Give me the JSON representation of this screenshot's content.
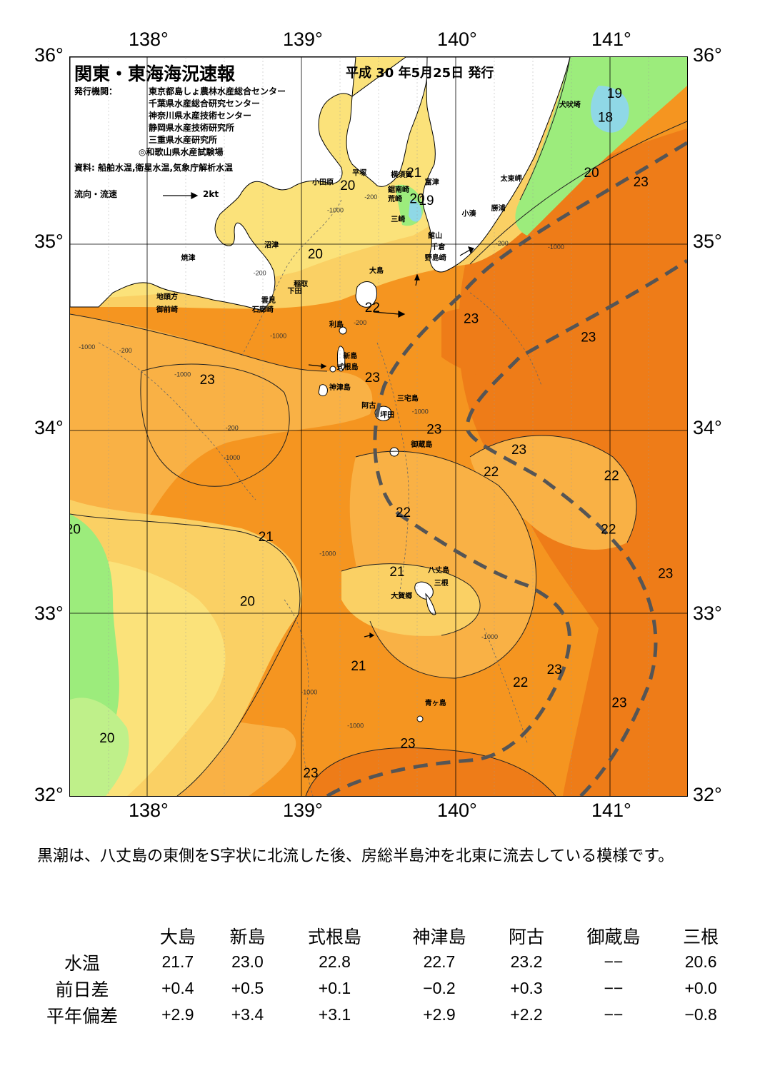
{
  "map": {
    "title": "関東・東海海況速報",
    "date": "平成 30 年5月25日 発行",
    "issuers_label": "発行機関：",
    "issuers": [
      "東京都島しょ農林水産総合センター",
      "千葉県水産総合研究センター",
      "神奈川県水産技術センター",
      "静岡県水産技術研究所",
      "三重県水産研究所",
      "◎和歌山県水産試験場"
    ],
    "sources": "資料: 船舶水温,衛星水温,気象庁解析水温",
    "legend_label": "流向・流速",
    "legend_speed": "2kt",
    "lon_labels": [
      "138°",
      "139°",
      "140°",
      "141°"
    ],
    "lat_labels": [
      "36°",
      "35°",
      "34°",
      "33°",
      "32°"
    ],
    "extent": {
      "lon": [
        137.5,
        141.5
      ],
      "lat": [
        32,
        36
      ]
    },
    "colors": {
      "t19": "#8fd8e6",
      "t20": "#9cec7c",
      "t20b": "#bff08a",
      "t21": "#fbe27a",
      "t21b": "#fad064",
      "t22": "#f9b145",
      "t23": "#f59520",
      "t23b": "#ee7c18",
      "land": "#ffffff",
      "kuroshio": "#555555"
    },
    "isotherm_labels": [
      {
        "text": "19",
        "lon": 141.03,
        "lat": 35.8
      },
      {
        "text": "18",
        "lon": 140.97,
        "lat": 35.67
      },
      {
        "text": "20",
        "lon": 140.88,
        "lat": 35.37
      },
      {
        "text": "23",
        "lon": 141.2,
        "lat": 35.32
      },
      {
        "text": "21",
        "lon": 139.73,
        "lat": 35.37
      },
      {
        "text": "20",
        "lon": 139.3,
        "lat": 35.3
      },
      {
        "text": "20",
        "lon": 139.75,
        "lat": 35.23
      },
      {
        "text": "19",
        "lon": 139.81,
        "lat": 35.22
      },
      {
        "text": "20",
        "lon": 139.09,
        "lat": 34.93
      },
      {
        "text": "22",
        "lon": 139.46,
        "lat": 34.64
      },
      {
        "text": "23",
        "lon": 140.1,
        "lat": 34.58
      },
      {
        "text": "23",
        "lon": 140.86,
        "lat": 34.48
      },
      {
        "text": "23",
        "lon": 138.39,
        "lat": 34.25
      },
      {
        "text": "23",
        "lon": 139.46,
        "lat": 34.26
      },
      {
        "text": "23",
        "lon": 139.86,
        "lat": 33.98
      },
      {
        "text": "23",
        "lon": 140.41,
        "lat": 33.87
      },
      {
        "text": "22",
        "lon": 140.23,
        "lat": 33.75
      },
      {
        "text": "22",
        "lon": 141.01,
        "lat": 33.73
      },
      {
        "text": "22",
        "lon": 139.66,
        "lat": 33.53
      },
      {
        "text": "22",
        "lon": 140.99,
        "lat": 33.44
      },
      {
        "text": "21",
        "lon": 138.77,
        "lat": 33.4
      },
      {
        "text": "21",
        "lon": 139.62,
        "lat": 33.21
      },
      {
        "text": "23",
        "lon": 141.36,
        "lat": 33.2
      },
      {
        "text": "20",
        "lon": 137.52,
        "lat": 33.44
      },
      {
        "text": "20",
        "lon": 138.65,
        "lat": 33.05
      },
      {
        "text": "21",
        "lon": 139.37,
        "lat": 32.7
      },
      {
        "text": "23",
        "lon": 140.64,
        "lat": 32.68
      },
      {
        "text": "22",
        "lon": 140.42,
        "lat": 32.61
      },
      {
        "text": "23",
        "lon": 141.06,
        "lat": 32.5
      },
      {
        "text": "20",
        "lon": 137.74,
        "lat": 32.31
      },
      {
        "text": "23",
        "lon": 139.69,
        "lat": 32.28
      },
      {
        "text": "23",
        "lon": 139.06,
        "lat": 32.12
      }
    ],
    "depth_labels": [
      {
        "text": "-200",
        "lon": 139.45,
        "lat": 35.23
      },
      {
        "text": "-1000",
        "lon": 139.22,
        "lat": 35.16
      },
      {
        "text": "-200",
        "lon": 138.73,
        "lat": 34.82
      },
      {
        "text": "-1000",
        "lon": 138.85,
        "lat": 34.48
      },
      {
        "text": "-200",
        "lon": 139.38,
        "lat": 34.55
      },
      {
        "text": "-1000",
        "lon": 137.61,
        "lat": 34.42
      },
      {
        "text": "-200",
        "lon": 137.86,
        "lat": 34.4
      },
      {
        "text": "-1000",
        "lon": 138.23,
        "lat": 34.27
      },
      {
        "text": "-200",
        "lon": 138.55,
        "lat": 33.98
      },
      {
        "text": "-1000",
        "lon": 138.55,
        "lat": 33.82
      },
      {
        "text": "-200",
        "lon": 140.3,
        "lat": 34.98
      },
      {
        "text": "-1000",
        "lon": 140.65,
        "lat": 34.96
      },
      {
        "text": "-1000",
        "lon": 139.77,
        "lat": 34.07
      },
      {
        "text": "-1000",
        "lon": 139.17,
        "lat": 33.3
      },
      {
        "text": "-1000",
        "lon": 140.22,
        "lat": 32.85
      },
      {
        "text": "-1000",
        "lon": 139.05,
        "lat": 32.55
      },
      {
        "text": "-1000",
        "lon": 139.35,
        "lat": 32.37
      }
    ],
    "places": [
      {
        "name": "犬吠埼",
        "lon": 140.67,
        "lat": 35.73
      },
      {
        "name": "太東岬",
        "lon": 140.29,
        "lat": 35.33
      },
      {
        "name": "勝浦",
        "lon": 140.23,
        "lat": 35.17
      },
      {
        "name": "小湊",
        "lon": 140.04,
        "lat": 35.14
      },
      {
        "name": "富津",
        "lon": 139.8,
        "lat": 35.31
      },
      {
        "name": "横須賀",
        "lon": 139.58,
        "lat": 35.35
      },
      {
        "name": "平塚",
        "lon": 139.33,
        "lat": 35.36
      },
      {
        "name": "小田原",
        "lon": 139.07,
        "lat": 35.31
      },
      {
        "name": "鋸南崎",
        "lon": 139.56,
        "lat": 35.27
      },
      {
        "name": "荒崎",
        "lon": 139.56,
        "lat": 35.22
      },
      {
        "name": "三崎",
        "lon": 139.58,
        "lat": 35.11
      },
      {
        "name": "館山",
        "lon": 139.82,
        "lat": 35.02
      },
      {
        "name": "千倉",
        "lon": 139.84,
        "lat": 34.96
      },
      {
        "name": "野島崎",
        "lon": 139.8,
        "lat": 34.9
      },
      {
        "name": "沼津",
        "lon": 138.76,
        "lat": 34.97
      },
      {
        "name": "焼津",
        "lon": 138.22,
        "lat": 34.9
      },
      {
        "name": "稲取",
        "lon": 138.95,
        "lat": 34.76
      },
      {
        "name": "下田",
        "lon": 138.91,
        "lat": 34.72
      },
      {
        "name": "雲見",
        "lon": 138.74,
        "lat": 34.67
      },
      {
        "name": "石廊崎",
        "lon": 138.68,
        "lat": 34.62
      },
      {
        "name": "地頭方",
        "lon": 138.06,
        "lat": 34.69
      },
      {
        "name": "御前崎",
        "lon": 138.06,
        "lat": 34.62
      },
      {
        "name": "大島",
        "lon": 139.44,
        "lat": 34.83
      },
      {
        "name": "利島",
        "lon": 139.18,
        "lat": 34.54
      },
      {
        "name": "新島",
        "lon": 139.27,
        "lat": 34.37
      },
      {
        "name": "式根島",
        "lon": 139.23,
        "lat": 34.31
      },
      {
        "name": "神津島",
        "lon": 139.18,
        "lat": 34.2
      },
      {
        "name": "三宅島",
        "lon": 139.62,
        "lat": 34.14
      },
      {
        "name": "阿古",
        "lon": 139.39,
        "lat": 34.1
      },
      {
        "name": "坪田",
        "lon": 139.51,
        "lat": 34.05
      },
      {
        "name": "御蔵島",
        "lon": 139.71,
        "lat": 33.89
      },
      {
        "name": "八丈島",
        "lon": 139.82,
        "lat": 33.21
      },
      {
        "name": "三根",
        "lon": 139.86,
        "lat": 33.14
      },
      {
        "name": "大賀郷",
        "lon": 139.58,
        "lat": 33.07
      },
      {
        "name": "青ヶ島",
        "lon": 139.8,
        "lat": 32.49
      }
    ]
  },
  "summary": "　黒潮は、八丈島の東側をS字状に北流した後、房総半島沖を北東に流去している模様です。",
  "table": {
    "columns": [
      "大島",
      "新島",
      "式根島",
      "神津島",
      "阿古",
      "御蔵島",
      "三根"
    ],
    "rows": [
      {
        "label": "水温",
        "values": [
          "21.7",
          "23.0",
          "22.8",
          "22.7",
          "23.2",
          "−−",
          "20.6"
        ]
      },
      {
        "label": "前日差",
        "values": [
          "+0.4",
          "+0.5",
          "+0.1",
          "−0.2",
          "+0.3",
          "−−",
          "+0.0"
        ]
      },
      {
        "label": "平年偏差",
        "values": [
          "+2.9",
          "+3.4",
          "+3.1",
          "+2.9",
          "+2.2",
          "−−",
          "−0.8"
        ]
      }
    ]
  }
}
